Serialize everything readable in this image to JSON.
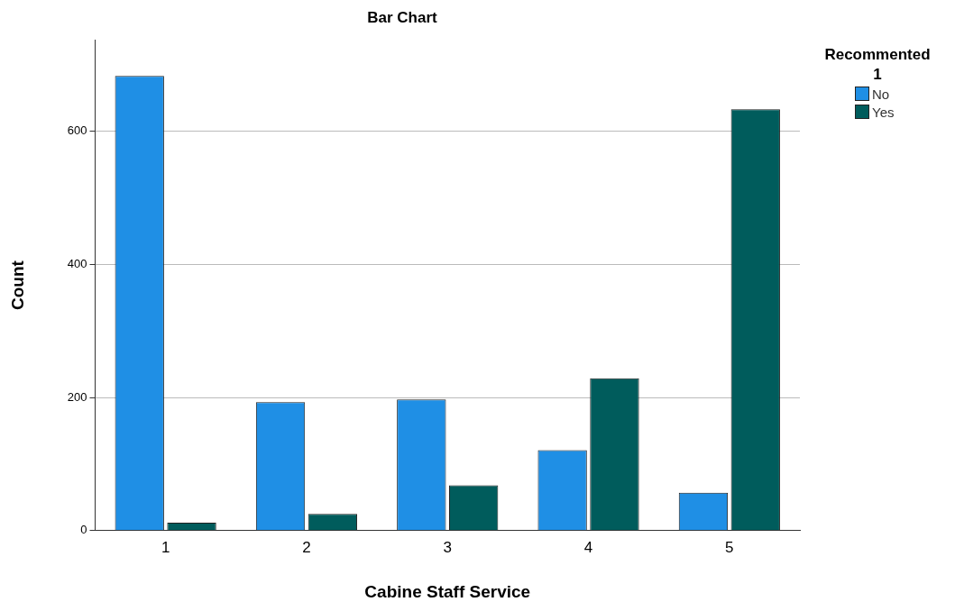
{
  "chart_data": {
    "type": "bar",
    "title": "Bar Chart",
    "xlabel": "Cabine Staff Service",
    "ylabel": "Count",
    "legend_title": "Recommented 1",
    "categories": [
      "1",
      "2",
      "3",
      "4",
      "5"
    ],
    "series": [
      {
        "name": "No",
        "color": "#1f8fe5",
        "values": [
          683,
          193,
          197,
          121,
          57
        ]
      },
      {
        "name": "Yes",
        "color": "#005c5c",
        "values": [
          12,
          25,
          68,
          229,
          633
        ]
      }
    ],
    "ylim": [
      0,
      737
    ],
    "yticks": [
      0,
      200,
      400,
      600
    ],
    "grid": "y",
    "legend": "top right"
  }
}
